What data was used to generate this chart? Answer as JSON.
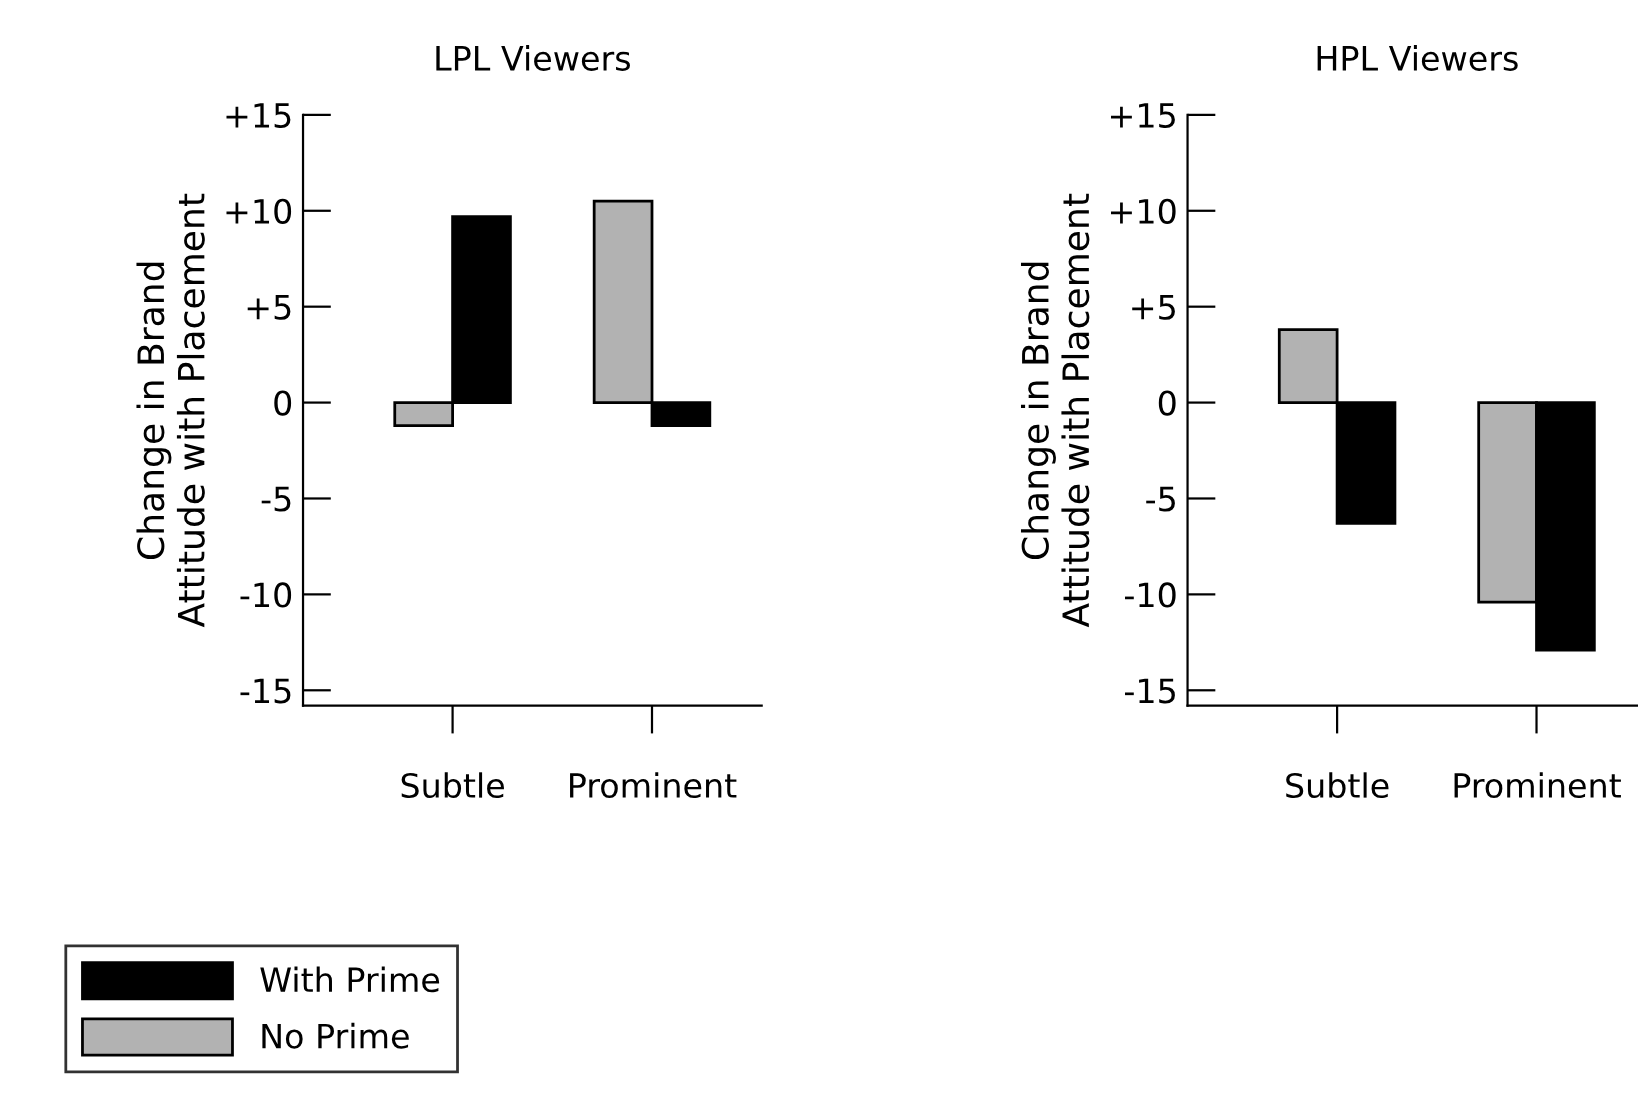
{
  "chart_data": [
    {
      "type": "bar",
      "title": "LPL Viewers",
      "ylabel": "Change in Brand\nAttitude with Placement",
      "categories": [
        "Subtle",
        "Prominent"
      ],
      "series": [
        {
          "name": "No Prime",
          "color": "#b2b2b2",
          "values": [
            -1.2,
            10.5
          ]
        },
        {
          "name": "With Prime",
          "color": "#000000",
          "values": [
            9.7,
            -1.2
          ]
        }
      ],
      "ylim": [
        -15.8,
        15
      ],
      "yticks": [
        {
          "value": 15,
          "label": "+15"
        },
        {
          "value": 10,
          "label": "+10"
        },
        {
          "value": 5,
          "label": "+5"
        },
        0,
        -5,
        -10,
        -15
      ],
      "grid": false,
      "legend": "bottom left"
    },
    {
      "type": "bar",
      "title": "HPL Viewers",
      "ylabel": "Change in Brand\nAttitude with Placement",
      "categories": [
        "Subtle",
        "Prominent"
      ],
      "series": [
        {
          "color": "#b2b2b2",
          "values": [
            3.8,
            -10.4
          ]
        },
        {
          "color": "#000000",
          "values": [
            -6.3,
            -12.9
          ]
        }
      ],
      "ylim": [
        -15.8,
        15
      ],
      "yticks": [
        {
          "value": 15,
          "label": "+15"
        },
        {
          "value": 10,
          "label": "+10"
        },
        {
          "value": 5,
          "label": "+5"
        },
        0,
        -5,
        -10,
        -15
      ],
      "grid": false
    }
  ]
}
